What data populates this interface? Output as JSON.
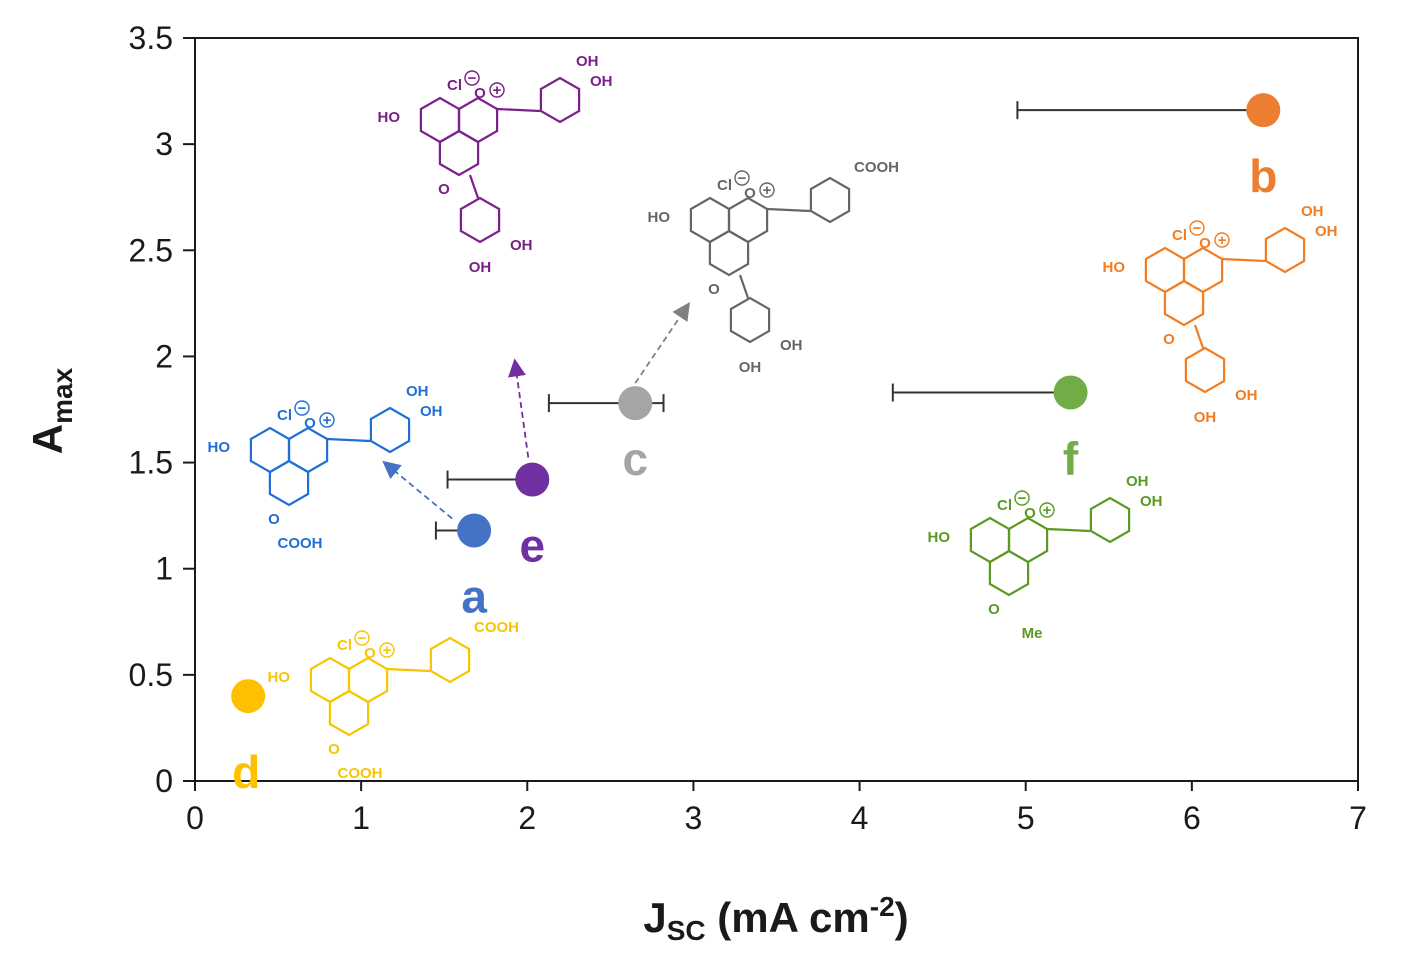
{
  "chart_data": {
    "type": "scatter",
    "xlabel": "J",
    "xlabel_sub": "SC",
    "xlabel_unit": " (mA cm",
    "xlabel_sup": "-2",
    "xlabel_close": ")",
    "ylabel": "A",
    "ylabel_sub": "max",
    "xlim": [
      0,
      7
    ],
    "ylim": [
      0,
      3.5
    ],
    "xticks": [
      "0",
      "1",
      "2",
      "3",
      "4",
      "5",
      "6",
      "7"
    ],
    "yticks": [
      "0",
      "0.5",
      "1",
      "1.5",
      "2",
      "2.5",
      "3",
      "3.5"
    ],
    "grid": false,
    "points": [
      {
        "label": "a",
        "x": 1.68,
        "y": 1.18,
        "xerr_low": 1.45,
        "xerr_high": 1.68,
        "color": "#4472C4"
      },
      {
        "label": "b",
        "x": 6.43,
        "y": 3.16,
        "xerr_low": 4.95,
        "xerr_high": 6.43,
        "color": "#ED7D31"
      },
      {
        "label": "c",
        "x": 2.65,
        "y": 1.78,
        "xerr_low": 2.13,
        "xerr_high": 2.82,
        "color": "#A5A5A5"
      },
      {
        "label": "d",
        "x": 0.32,
        "y": 0.4,
        "color": "#FFC000"
      },
      {
        "label": "e",
        "x": 2.03,
        "y": 1.42,
        "xerr_low": 1.52,
        "xerr_high": 2.03,
        "color": "#7030A0"
      },
      {
        "label": "f",
        "x": 5.27,
        "y": 1.83,
        "xerr_low": 4.2,
        "xerr_high": 5.27,
        "color": "#70AD47"
      }
    ],
    "structures": [
      {
        "for": "a",
        "color": "#1F6FD6",
        "substituent": "COOH",
        "side": "OH"
      },
      {
        "for": "b",
        "color": "#F47C20",
        "substituent": "OH",
        "side": "OH"
      },
      {
        "for": "c",
        "color": "#666666",
        "substituent": "OH",
        "side": "COOH"
      },
      {
        "for": "d",
        "color": "#F7C600",
        "substituent": "COOH",
        "side": "COOH"
      },
      {
        "for": "e",
        "color": "#7B1F8A",
        "substituent": "OH",
        "side": "OH"
      },
      {
        "for": "f",
        "color": "#5B9A22",
        "substituent": "Me",
        "side": "OH"
      }
    ],
    "chem_text": {
      "cl": "Cl",
      "oh": "OH",
      "ho": "HO",
      "o": "O",
      "cooh": "COOH",
      "me": "Me",
      "minus": "−",
      "plus": "+"
    }
  }
}
